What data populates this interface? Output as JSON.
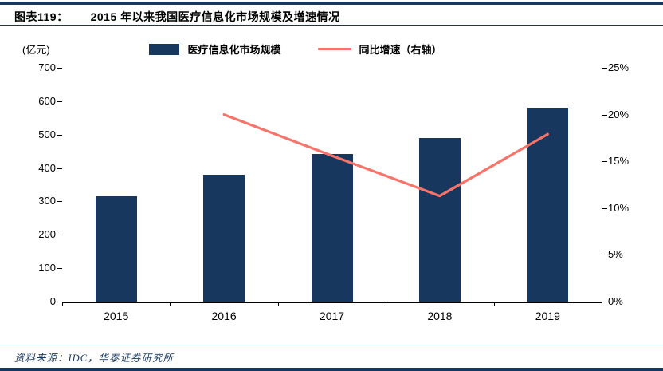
{
  "header": {
    "tag": "图表119：",
    "title": "2015 年以来我国医疗信息化市场规模及增速情况"
  },
  "footer": {
    "source": "资料来源：IDC，华泰证券研究所"
  },
  "chart_data": {
    "type": "bar",
    "subtype": "bar-with-line-overlay",
    "title": "2015 年以来我国医疗信息化市场规模及增速情况",
    "unit_label": "(亿元)",
    "categories": [
      "2015",
      "2016",
      "2017",
      "2018",
      "2019"
    ],
    "series": [
      {
        "name": "医疗信息化市场规模",
        "type": "bar",
        "axis": "left",
        "color": "#17375E",
        "values": [
          315,
          380,
          442,
          490,
          580
        ]
      },
      {
        "name": "同比增速（右轴）",
        "type": "line",
        "axis": "right",
        "color": "#F8736A",
        "values": [
          null,
          20.0,
          15.6,
          11.3,
          17.9
        ]
      }
    ],
    "left_axis": {
      "min": 0,
      "max": 700,
      "step": 100,
      "ticks": [
        "700",
        "600",
        "500",
        "400",
        "300",
        "200",
        "100",
        "0"
      ]
    },
    "right_axis": {
      "min": 0,
      "max": 25,
      "step": 5,
      "ticks": [
        "25%",
        "20%",
        "15%",
        "10%",
        "5%",
        "0%"
      ]
    },
    "legend_position": "top",
    "grid": false
  }
}
